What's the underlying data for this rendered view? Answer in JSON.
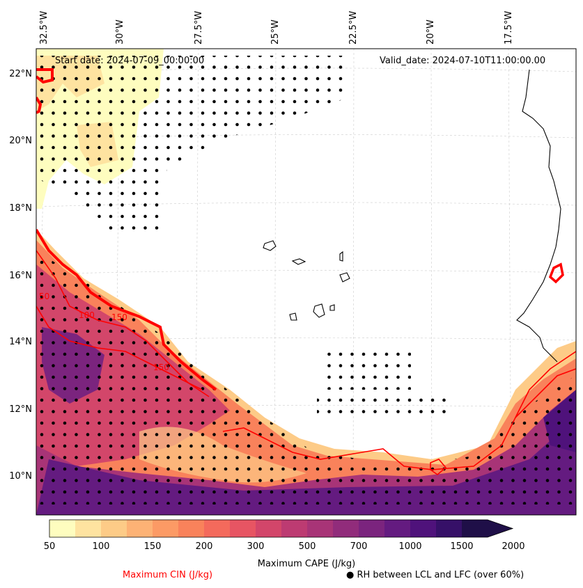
{
  "map": {
    "start_date": "Start date: 2024-07-09_00:00:00",
    "valid_date": "Valid_date: 2024-07-10T11:00:00.00",
    "lon_labels": [
      "32.5°W",
      "30°W",
      "27.5°W",
      "25°W",
      "22.5°W",
      "20°W",
      "17.5°W"
    ],
    "lat_labels": [
      "22°N",
      "20°N",
      "18°N",
      "16°N",
      "14°N",
      "12°N",
      "10°N"
    ],
    "cin_contour_labels": [
      "100",
      "150",
      "50",
      "150"
    ]
  },
  "colorbar": {
    "tick_labels": [
      "50",
      "100",
      "150",
      "200",
      "300",
      "500",
      "700",
      "1000",
      "1500",
      "2000"
    ],
    "colors": [
      "#fefdbf",
      "#fee3a0",
      "#fdcb87",
      "#fdb275",
      "#fc9a65",
      "#f9825b",
      "#f46a5c",
      "#e75563",
      "#d3466a",
      "#bd3b72",
      "#a83477",
      "#912c7b",
      "#7b247e",
      "#641b80",
      "#4f127b",
      "#361068",
      "#1f0f48"
    ],
    "label": "Maximum CAPE (J/kg)"
  },
  "legend": {
    "cin": "Maximum CIN (J/kg)",
    "rh": "RH between LCL and LFC (over 60%)",
    "rh_marker": "●"
  },
  "colors": {
    "cin_contour": "#ff0000",
    "coast": "#000000"
  }
}
